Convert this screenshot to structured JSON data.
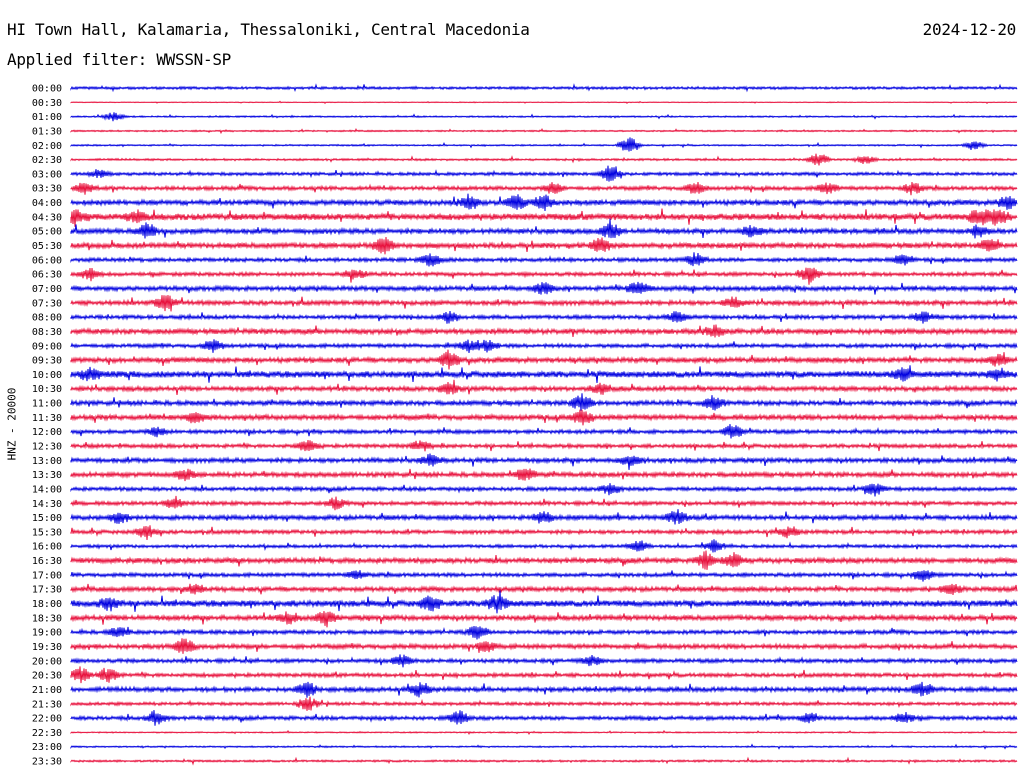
{
  "header": {
    "station": "HI Town Hall, Kalamaria, Thessaloniki, Central Macedonia",
    "date": "2024-12-20",
    "filter": "Applied filter: WWSSN-SP"
  },
  "chart_data": {
    "type": "line",
    "title": "HI Town Hall, Kalamaria, Thessaloniki, Central Macedonia",
    "ylabel": "HNZ - 20000",
    "colors": {
      "even_rows": "#0000e0",
      "odd_rows": "#e8103c"
    },
    "rows": [
      {
        "time": "00:00",
        "amp": 1,
        "bursts": []
      },
      {
        "time": "00:30",
        "amp": 0.3,
        "bursts": []
      },
      {
        "time": "01:00",
        "amp": 0.6,
        "bursts": [
          [
            0.045,
            3
          ]
        ]
      },
      {
        "time": "01:30",
        "amp": 0.6,
        "bursts": []
      },
      {
        "time": "02:00",
        "amp": 0.6,
        "bursts": [
          [
            0.59,
            6
          ],
          [
            0.955,
            3
          ]
        ]
      },
      {
        "time": "02:30",
        "amp": 0.8,
        "bursts": [
          [
            0.79,
            5
          ],
          [
            0.84,
            3
          ]
        ]
      },
      {
        "time": "03:00",
        "amp": 1.2,
        "bursts": [
          [
            0.57,
            6
          ],
          [
            0.03,
            3
          ]
        ]
      },
      {
        "time": "03:30",
        "amp": 1.5,
        "bursts": [
          [
            0.015,
            4
          ],
          [
            0.51,
            4
          ],
          [
            0.66,
            4
          ],
          [
            0.8,
            4
          ],
          [
            0.89,
            4
          ]
        ]
      },
      {
        "time": "04:00",
        "amp": 2,
        "bursts": [
          [
            0.42,
            5
          ],
          [
            0.47,
            5
          ],
          [
            0.5,
            5
          ],
          [
            0.99,
            5
          ]
        ]
      },
      {
        "time": "04:30",
        "amp": 2.5,
        "bursts": [
          [
            0.005,
            4
          ],
          [
            0.07,
            4
          ],
          [
            0.96,
            6
          ],
          [
            0.98,
            6
          ]
        ]
      },
      {
        "time": "05:00",
        "amp": 2,
        "bursts": [
          [
            0.08,
            5
          ],
          [
            0.57,
            5
          ],
          [
            0.72,
            4
          ],
          [
            0.96,
            4
          ]
        ]
      },
      {
        "time": "05:30",
        "amp": 2,
        "bursts": [
          [
            0.33,
            6
          ],
          [
            0.56,
            5
          ],
          [
            0.97,
            4
          ]
        ]
      },
      {
        "time": "06:00",
        "amp": 1.5,
        "bursts": [
          [
            0.38,
            4
          ],
          [
            0.66,
            5
          ],
          [
            0.88,
            4
          ]
        ]
      },
      {
        "time": "06:30",
        "amp": 1.5,
        "bursts": [
          [
            0.02,
            4
          ],
          [
            0.3,
            4
          ],
          [
            0.78,
            6
          ]
        ]
      },
      {
        "time": "07:00",
        "amp": 1.8,
        "bursts": [
          [
            0.5,
            4
          ],
          [
            0.6,
            5
          ]
        ]
      },
      {
        "time": "07:30",
        "amp": 1.8,
        "bursts": [
          [
            0.1,
            6
          ],
          [
            0.7,
            4
          ]
        ]
      },
      {
        "time": "08:00",
        "amp": 1.5,
        "bursts": [
          [
            0.4,
            4
          ],
          [
            0.64,
            4
          ],
          [
            0.9,
            4
          ]
        ]
      },
      {
        "time": "08:30",
        "amp": 2,
        "bursts": [
          [
            0.68,
            4
          ]
        ]
      },
      {
        "time": "09:00",
        "amp": 1.5,
        "bursts": [
          [
            0.15,
            4
          ],
          [
            0.42,
            4
          ],
          [
            0.44,
            4
          ]
        ]
      },
      {
        "time": "09:30",
        "amp": 2,
        "bursts": [
          [
            0.4,
            6
          ],
          [
            0.98,
            4
          ]
        ]
      },
      {
        "time": "10:00",
        "amp": 2.5,
        "bursts": [
          [
            0.02,
            4
          ],
          [
            0.88,
            4
          ],
          [
            0.98,
            4
          ]
        ]
      },
      {
        "time": "10:30",
        "amp": 1.8,
        "bursts": [
          [
            0.4,
            4
          ],
          [
            0.56,
            4
          ]
        ]
      },
      {
        "time": "11:00",
        "amp": 1.8,
        "bursts": [
          [
            0.54,
            6
          ],
          [
            0.68,
            5
          ]
        ]
      },
      {
        "time": "11:30",
        "amp": 2,
        "bursts": [
          [
            0.54,
            6
          ],
          [
            0.13,
            4
          ]
        ]
      },
      {
        "time": "12:00",
        "amp": 1.5,
        "bursts": [
          [
            0.09,
            3
          ],
          [
            0.7,
            5
          ]
        ]
      },
      {
        "time": "12:30",
        "amp": 1.5,
        "bursts": [
          [
            0.25,
            4
          ],
          [
            0.37,
            4
          ]
        ]
      },
      {
        "time": "13:00",
        "amp": 1.8,
        "bursts": [
          [
            0.38,
            4
          ],
          [
            0.59,
            4
          ]
        ]
      },
      {
        "time": "13:30",
        "amp": 1.8,
        "bursts": [
          [
            0.12,
            4
          ],
          [
            0.48,
            5
          ]
        ]
      },
      {
        "time": "14:00",
        "amp": 1.5,
        "bursts": [
          [
            0.57,
            4
          ],
          [
            0.85,
            5
          ]
        ]
      },
      {
        "time": "14:30",
        "amp": 1.5,
        "bursts": [
          [
            0.11,
            4
          ],
          [
            0.28,
            4
          ]
        ]
      },
      {
        "time": "15:00",
        "amp": 1.8,
        "bursts": [
          [
            0.05,
            4
          ],
          [
            0.5,
            4
          ],
          [
            0.64,
            5
          ]
        ]
      },
      {
        "time": "15:30",
        "amp": 1.5,
        "bursts": [
          [
            0.08,
            5
          ],
          [
            0.76,
            4
          ]
        ]
      },
      {
        "time": "16:00",
        "amp": 1.2,
        "bursts": [
          [
            0.6,
            4
          ],
          [
            0.68,
            4
          ]
        ]
      },
      {
        "time": "16:30",
        "amp": 2,
        "bursts": [
          [
            0.67,
            6
          ],
          [
            0.7,
            5
          ]
        ]
      },
      {
        "time": "17:00",
        "amp": 1.5,
        "bursts": [
          [
            0.3,
            3
          ],
          [
            0.9,
            4
          ]
        ]
      },
      {
        "time": "17:30",
        "amp": 1.8,
        "bursts": [
          [
            0.13,
            4
          ],
          [
            0.93,
            4
          ]
        ]
      },
      {
        "time": "18:00",
        "amp": 2.5,
        "bursts": [
          [
            0.04,
            4
          ],
          [
            0.38,
            5
          ],
          [
            0.45,
            5
          ]
        ]
      },
      {
        "time": "18:30",
        "amp": 2,
        "bursts": [
          [
            0.23,
            4
          ],
          [
            0.27,
            5
          ]
        ]
      },
      {
        "time": "19:00",
        "amp": 1.5,
        "bursts": [
          [
            0.05,
            4
          ],
          [
            0.43,
            5
          ]
        ]
      },
      {
        "time": "19:30",
        "amp": 1.8,
        "bursts": [
          [
            0.12,
            6
          ],
          [
            0.44,
            4
          ]
        ]
      },
      {
        "time": "20:00",
        "amp": 1.5,
        "bursts": [
          [
            0.35,
            4
          ],
          [
            0.55,
            4
          ]
        ]
      },
      {
        "time": "20:30",
        "amp": 1.5,
        "bursts": [
          [
            0.01,
            5
          ],
          [
            0.04,
            5
          ]
        ]
      },
      {
        "time": "21:00",
        "amp": 1.8,
        "bursts": [
          [
            0.25,
            5
          ],
          [
            0.37,
            5
          ],
          [
            0.9,
            5
          ]
        ]
      },
      {
        "time": "21:30",
        "amp": 1.2,
        "bursts": [
          [
            0.25,
            5
          ]
        ]
      },
      {
        "time": "22:00",
        "amp": 1.5,
        "bursts": [
          [
            0.09,
            5
          ],
          [
            0.41,
            5
          ],
          [
            0.78,
            4
          ],
          [
            0.88,
            4
          ]
        ]
      },
      {
        "time": "22:30",
        "amp": 0.5,
        "bursts": []
      },
      {
        "time": "23:00",
        "amp": 0.6,
        "bursts": []
      },
      {
        "time": "23:30",
        "amp": 0.8,
        "bursts": []
      }
    ]
  }
}
